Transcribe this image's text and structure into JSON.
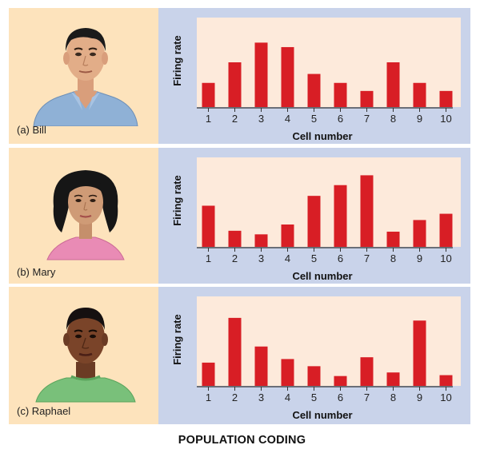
{
  "title": "POPULATION CODING",
  "colors": {
    "bar": "#d81e25",
    "plot_bg": "#fdeadb",
    "chart_panel_bg": "#c9d3ea",
    "portrait_panel_bg": "#fde3bc",
    "axis": "#333333"
  },
  "panels": [
    {
      "caption": "(a) Bill",
      "person": "Bill"
    },
    {
      "caption": "(b) Mary",
      "person": "Mary"
    },
    {
      "caption": "(c) Raphael",
      "person": "Raphael"
    }
  ],
  "chart_data": [
    {
      "type": "bar",
      "categories": [
        "1",
        "2",
        "3",
        "4",
        "5",
        "6",
        "7",
        "8",
        "9",
        "10"
      ],
      "values": [
        27,
        50,
        72,
        67,
        37,
        27,
        18,
        50,
        27,
        18
      ],
      "xlabel": "Cell number",
      "ylabel": "Firing rate",
      "ylim": [
        0,
        100
      ],
      "grid": false
    },
    {
      "type": "bar",
      "categories": [
        "1",
        "2",
        "3",
        "4",
        "5",
        "6",
        "7",
        "8",
        "9",
        "10"
      ],
      "values": [
        46,
        18,
        14,
        25,
        57,
        69,
        80,
        17,
        30,
        37
      ],
      "xlabel": "Cell number",
      "ylabel": "Firing rate",
      "ylim": [
        0,
        100
      ],
      "grid": false
    },
    {
      "type": "bar",
      "categories": [
        "1",
        "2",
        "3",
        "4",
        "5",
        "6",
        "7",
        "8",
        "9",
        "10"
      ],
      "values": [
        26,
        76,
        44,
        30,
        22,
        11,
        32,
        15,
        73,
        12
      ],
      "xlabel": "Cell number",
      "ylabel": "Firing rate",
      "ylim": [
        0,
        100
      ],
      "grid": false
    }
  ]
}
